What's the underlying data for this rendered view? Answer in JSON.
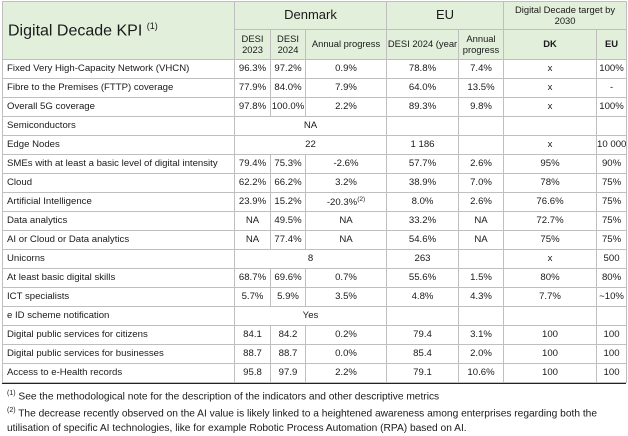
{
  "title": {
    "text": "Digital Decade KPI",
    "marker": "(1)"
  },
  "groups": {
    "denmark": "Denmark",
    "eu": "EU",
    "target": "Digital Decade target by 2030"
  },
  "subheaders": {
    "dk_desi_2023": "DESI 2023",
    "dk_desi_2024": "DESI 2024",
    "dk_annual": "Annual progress",
    "eu_desi_2024": "DESI 2024 (year",
    "eu_annual": "Annual progress",
    "target_dk": "DK",
    "target_eu": "EU"
  },
  "rows": [
    {
      "label": "Fixed Very High-Capacity Network (VHCN)",
      "dk2023": "96.3%",
      "dk2024": "97.2%",
      "dk_prog": "0.9%",
      "eu2024": "78.8%",
      "eu_prog": "7.4%",
      "t_dk": "x",
      "t_eu": "100%"
    },
    {
      "label": "Fibre to the Premises (FTTP) coverage",
      "dk2023": "77.9%",
      "dk2024": "84.0%",
      "dk_prog": "7.9%",
      "eu2024": "64.0%",
      "eu_prog": "13.5%",
      "t_dk": "x",
      "t_eu": "-"
    },
    {
      "label": "Overall 5G coverage",
      "dk2023": "97.8%",
      "dk2024": "100.0%",
      "dk_prog": "2.2%",
      "eu2024": "89.3%",
      "eu_prog": "9.8%",
      "t_dk": "x",
      "t_eu": "100%"
    },
    {
      "label": "Semiconductors",
      "dk_merged": "NA",
      "eu2024": "",
      "eu_prog": "",
      "t_dk": "",
      "t_eu": ""
    },
    {
      "label": "Edge Nodes",
      "dk_merged": "22",
      "eu2024": "1 186",
      "eu_prog": "",
      "t_dk": "x",
      "t_eu": "10 000"
    },
    {
      "label": "SMEs with at least a basic level of digital intensity",
      "dk2023": "79.4%",
      "dk2024": "75.3%",
      "dk_prog": "-2.6%",
      "eu2024": "57.7%",
      "eu_prog": "2.6%",
      "t_dk": "95%",
      "t_eu": "90%"
    },
    {
      "label": "Cloud",
      "dk2023": "62.2%",
      "dk2024": "66.2%",
      "dk_prog": "3.2%",
      "eu2024": "38.9%",
      "eu_prog": "7.0%",
      "t_dk": "78%",
      "t_eu": "75%"
    },
    {
      "label": "Artificial Intelligence",
      "dk2023": "23.9%",
      "dk2024": "15.2%",
      "dk_prog": "-20.3%",
      "dk_prog_note": "(2)",
      "eu2024": "8.0%",
      "eu_prog": "2.6%",
      "t_dk": "76.6%",
      "t_eu": "75%"
    },
    {
      "label": "Data analytics",
      "dk2023": "NA",
      "dk2024": "49.5%",
      "dk_prog": "NA",
      "eu2024": "33.2%",
      "eu_prog": "NA",
      "t_dk": "72.7%",
      "t_eu": "75%"
    },
    {
      "label": "AI or Cloud or Data analytics",
      "dk2023": "NA",
      "dk2024": "77.4%",
      "dk_prog": "NA",
      "eu2024": "54.6%",
      "eu_prog": "NA",
      "t_dk": "75%",
      "t_eu": "75%"
    },
    {
      "label": "Unicorns",
      "dk_merged": "8",
      "eu2024": "263",
      "eu_prog": "",
      "t_dk": "x",
      "t_eu": "500"
    },
    {
      "label": "At least basic digital skills",
      "dk2023": "68.7%",
      "dk2024": "69.6%",
      "dk_prog": "0.7%",
      "eu2024": "55.6%",
      "eu_prog": "1.5%",
      "t_dk": "80%",
      "t_eu": "80%"
    },
    {
      "label": "ICT specialists",
      "dk2023": "5.7%",
      "dk2024": "5.9%",
      "dk_prog": "3.5%",
      "eu2024": "4.8%",
      "eu_prog": "4.3%",
      "t_dk": "7.7%",
      "t_eu": "~10%"
    },
    {
      "label": "e ID scheme notification",
      "dk_merged": "Yes",
      "eu2024": "",
      "eu_prog": "",
      "t_dk": "",
      "t_eu": ""
    },
    {
      "label": "Digital public services for citizens",
      "dk2023": "84.1",
      "dk2024": "84.2",
      "dk_prog": "0.2%",
      "eu2024": "79.4",
      "eu_prog": "3.1%",
      "t_dk": "100",
      "t_eu": "100"
    },
    {
      "label": "Digital public services for businesses",
      "dk2023": "88.7",
      "dk2024": "88.7",
      "dk_prog": "0.0%",
      "eu2024": "85.4",
      "eu_prog": "2.0%",
      "t_dk": "100",
      "t_eu": "100"
    },
    {
      "label": "Access to e-Health records",
      "dk2023": "95.8",
      "dk2024": "97.9",
      "dk_prog": "2.2%",
      "eu2024": "79.1",
      "eu_prog": "10.6%",
      "t_dk": "100",
      "t_eu": "100"
    }
  ],
  "footnotes": [
    {
      "marker": "(1)",
      "text": " See the methodological note for the description of the indicators and other descriptive metrics"
    },
    {
      "marker": "(2)",
      "text": " The decrease recently observed on the AI value is likely linked to a heightened awareness among enterprises regarding both the utilisation of specific AI technologies, like for example Robotic Process Automation (RPA) based on AI."
    }
  ]
}
